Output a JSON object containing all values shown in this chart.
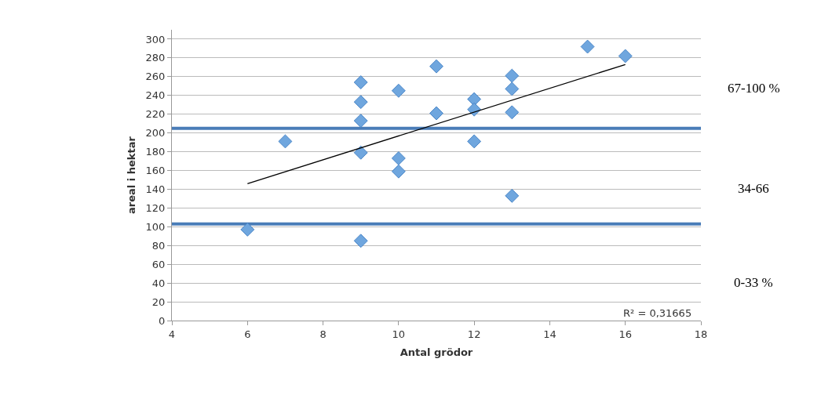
{
  "chart_data": {
    "type": "scatter",
    "xlabel": "Antal grödor",
    "ylabel": "areal i hektar",
    "series": [
      {
        "color": "#6fa6de",
        "marker": "diamond",
        "x": [
          6,
          7,
          9,
          9,
          9,
          9,
          9,
          10,
          10,
          10,
          11,
          11,
          12,
          12,
          12,
          13,
          13,
          13,
          13,
          15,
          16
        ],
        "values": [
          97,
          191,
          254,
          233,
          213,
          179,
          85,
          245,
          173,
          159,
          271,
          221,
          236,
          225,
          191,
          261,
          247,
          222,
          133,
          292,
          282
        ]
      },
      {
        "type": "line",
        "color": "#000000",
        "marker": "none",
        "line_style": "solid",
        "x": [
          6,
          16
        ],
        "values": [
          146,
          273
        ]
      }
    ],
    "xlim": [
      4,
      18
    ],
    "xticks": [
      4,
      6,
      8,
      10,
      12,
      14,
      16,
      18
    ],
    "ylim": [
      0,
      310
    ],
    "yticks": [
      0,
      20,
      40,
      60,
      80,
      100,
      120,
      140,
      160,
      180,
      200,
      220,
      240,
      260,
      280,
      300
    ],
    "grid": "y",
    "ref_lines": [
      {
        "axis": "y",
        "value": 205,
        "color": "#4a7db8"
      },
      {
        "axis": "y",
        "value": 103,
        "color": "#4a7db8"
      }
    ],
    "annotations": [
      "R² = 0,31665",
      "67-100 %",
      "34-66",
      "0-33 %"
    ]
  }
}
